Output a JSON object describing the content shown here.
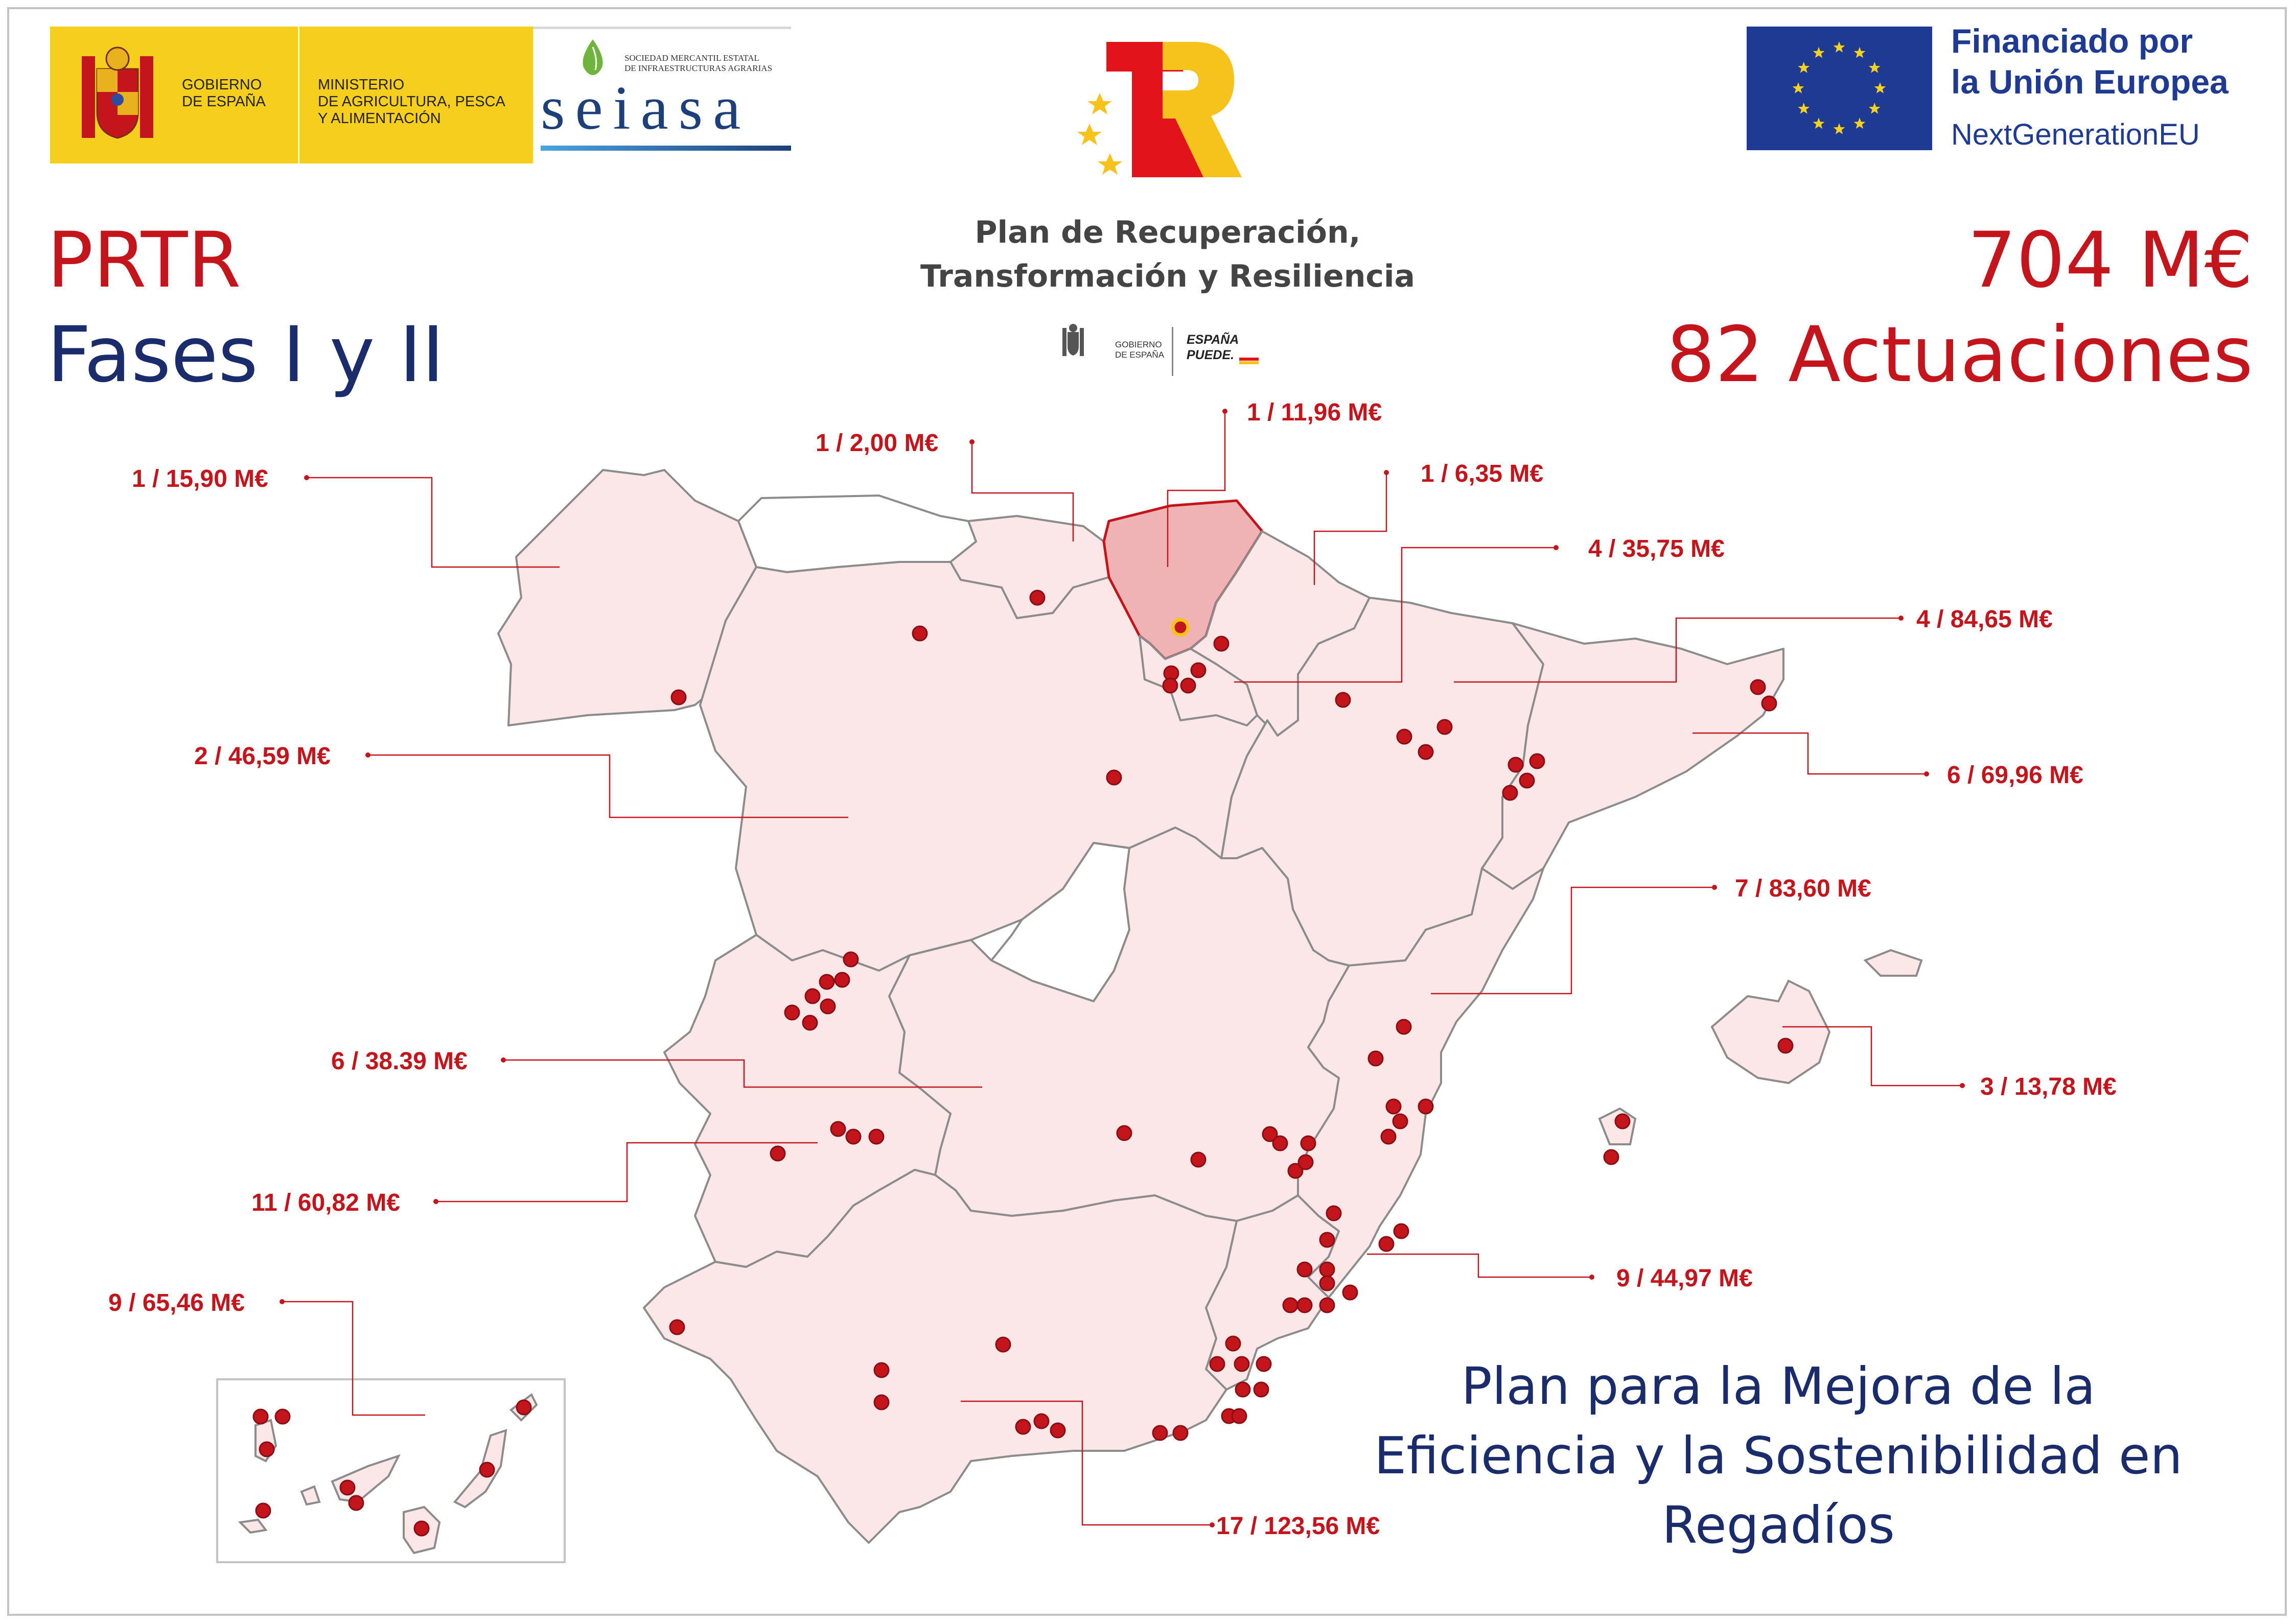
{
  "header": {
    "gobierno": {
      "name_line1": "GOBIERNO",
      "name_line2": "DE ESPAÑA",
      "ministry_line1": "MINISTERIO",
      "ministry_line2": "DE AGRICULTURA, PESCA",
      "ministry_line3": "Y ALIMENTACIÓN"
    },
    "seiasa": {
      "subtitle_line1": "SOCIEDAD MERCANTIL ESTATAL",
      "subtitle_line2": "DE INFRAESTRUCTURAS AGRARIAS",
      "wordmark": "seiasa"
    },
    "prtr_logo": {
      "title_line1": "Plan de Recuperación,",
      "title_line2": "Transformación y Resiliencia",
      "gob_small_line1": "GOBIERNO",
      "gob_small_line2": "DE ESPAÑA",
      "espana_puede_line1": "ESPAÑA",
      "espana_puede_line2": "PUEDE."
    },
    "eu": {
      "line1": "Financiado por",
      "line2": "la Unión Europea",
      "line3": "NextGenerationEU"
    }
  },
  "left_title": {
    "line1": "PRTR",
    "line2": "Fases I y II"
  },
  "totals": {
    "amount": "704 M€",
    "actions": "82 Actuaciones"
  },
  "plan_title": {
    "line1": "Plan para la Mejora de la",
    "line2": "Eficiencia y la Sostenibilidad en",
    "line3": "Regadíos"
  },
  "map": {
    "colors": {
      "region_fill": "#fbe7e7",
      "region_stroke": "#8c8c8c",
      "highlight_fill": "#efb3b6",
      "highlight_stroke": "#c4151c",
      "dot": "#c4151c",
      "leader": "#c4151c"
    },
    "callouts": [
      {
        "id": "galicia",
        "label": "1 / 15,90 M€"
      },
      {
        "id": "cantabria",
        "label": "1 / 2,00 M€"
      },
      {
        "id": "pais-vasco",
        "label": "1 / 11,96 M€"
      },
      {
        "id": "navarra",
        "label": "1 / 6,35 M€"
      },
      {
        "id": "aragon",
        "label": "4 / 35,75 M€"
      },
      {
        "id": "cataluna",
        "label": "4 / 84,65 M€"
      },
      {
        "id": "castilla-leon",
        "label": "2 / 46,59 M€"
      },
      {
        "id": "cataluna-2",
        "label": "6 / 69,96 M€"
      },
      {
        "id": "valencia",
        "label": "7 / 83,60 M€"
      },
      {
        "id": "baleares",
        "label": "3 / 13,78 M€"
      },
      {
        "id": "extremadura-norte",
        "label": "6 / 38.39 M€"
      },
      {
        "id": "extremadura-sur",
        "label": "11 / 60,82 M€"
      },
      {
        "id": "murcia",
        "label": "9 / 44,97 M€"
      },
      {
        "id": "canarias",
        "label": "9 / 65,46 M€"
      },
      {
        "id": "andalucia",
        "label": "17 / 123,56 M€"
      }
    ]
  }
}
